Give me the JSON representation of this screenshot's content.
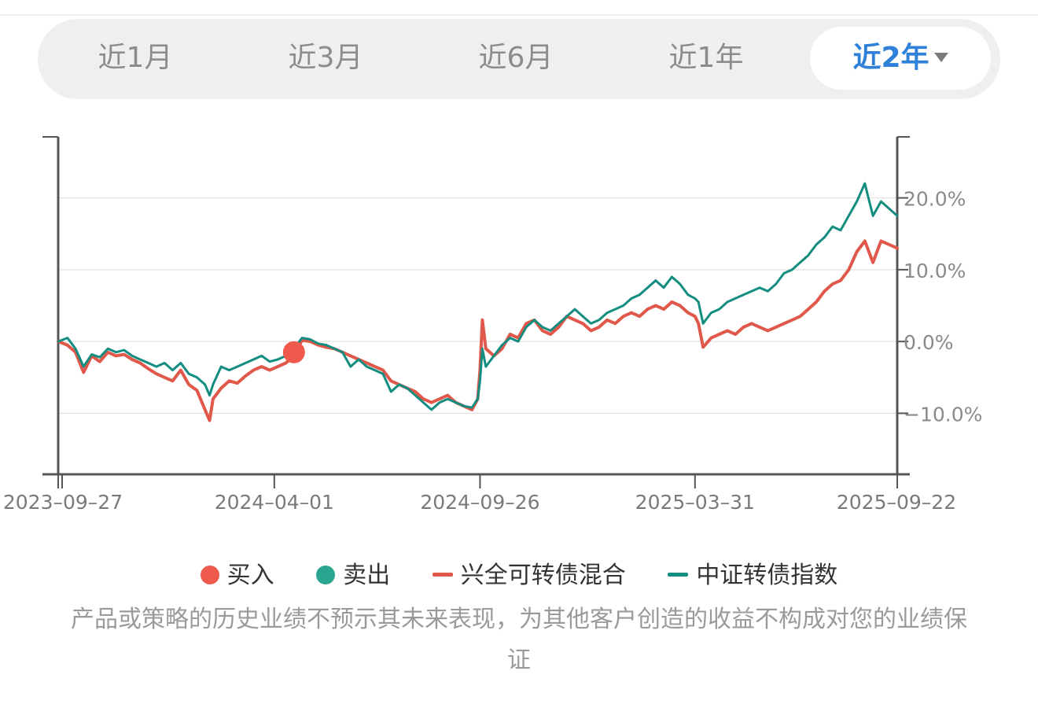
{
  "tabs": [
    {
      "label": "近1月",
      "active": false
    },
    {
      "label": "近3月",
      "active": false
    },
    {
      "label": "近6月",
      "active": false
    },
    {
      "label": "近1年",
      "active": false
    },
    {
      "label": "近2年",
      "active": true
    }
  ],
  "colors": {
    "fund": "#e0584a",
    "index": "#138d80",
    "buy": "#ef5a4c",
    "sell": "#2aa58f",
    "active_tab": "#2f80d8"
  },
  "legend": {
    "buy": "买入",
    "sell": "卖出",
    "fund": "兴全可转债混合",
    "index": "中证转债指数"
  },
  "disclaimer": "产品或策略的历史业绩不预示其未来表现，为其他客户创造的收益不构成对您的业绩保证",
  "chart_data": {
    "type": "line",
    "x_start": "2023-09-27",
    "x_end": "2025-09-22",
    "x_ticks": [
      "2023-09-27",
      "2024-04-01",
      "2024-09-26",
      "2025-03-31",
      "2025-09-22"
    ],
    "y_ticks": [
      20,
      10,
      0,
      -10
    ],
    "y_tick_labels": [
      "20.0%",
      "10.0%",
      "0.0%",
      "−10.0%"
    ],
    "ylim": [
      -18.5,
      28.5
    ],
    "y_axis_side": "right",
    "grid": true,
    "series": [
      {
        "name": "兴全可转债混合",
        "color": "#e0584a",
        "points": [
          [
            "2023-09-27",
            0.0
          ],
          [
            "2023-10-05",
            -0.5
          ],
          [
            "2023-10-12",
            -1.5
          ],
          [
            "2023-10-19",
            -4.3
          ],
          [
            "2023-10-26",
            -2.0
          ],
          [
            "2023-11-02",
            -2.8
          ],
          [
            "2023-11-09",
            -1.5
          ],
          [
            "2023-11-16",
            -2.0
          ],
          [
            "2023-11-23",
            -1.8
          ],
          [
            "2023-11-30",
            -2.5
          ],
          [
            "2023-12-07",
            -3.0
          ],
          [
            "2023-12-14",
            -3.8
          ],
          [
            "2023-12-21",
            -4.5
          ],
          [
            "2023-12-28",
            -5.0
          ],
          [
            "2024-01-04",
            -5.5
          ],
          [
            "2024-01-11",
            -4.0
          ],
          [
            "2024-01-18",
            -6.0
          ],
          [
            "2024-01-25",
            -6.8
          ],
          [
            "2024-02-01",
            -9.5
          ],
          [
            "2024-02-05",
            -11.0
          ],
          [
            "2024-02-08",
            -8.0
          ],
          [
            "2024-02-15",
            -6.5
          ],
          [
            "2024-02-22",
            -5.5
          ],
          [
            "2024-02-29",
            -5.8
          ],
          [
            "2024-03-07",
            -4.8
          ],
          [
            "2024-03-14",
            -4.0
          ],
          [
            "2024-03-21",
            -3.5
          ],
          [
            "2024-03-28",
            -4.0
          ],
          [
            "2024-04-04",
            -3.5
          ],
          [
            "2024-04-11",
            -3.0
          ],
          [
            "2024-04-18",
            -2.0
          ],
          [
            "2024-04-25",
            0.2
          ],
          [
            "2024-05-02",
            0.0
          ],
          [
            "2024-05-09",
            -0.5
          ],
          [
            "2024-05-16",
            -0.8
          ],
          [
            "2024-05-23",
            -1.0
          ],
          [
            "2024-05-30",
            -1.5
          ],
          [
            "2024-06-06",
            -2.0
          ],
          [
            "2024-06-13",
            -2.5
          ],
          [
            "2024-06-20",
            -3.0
          ],
          [
            "2024-06-27",
            -3.5
          ],
          [
            "2024-07-04",
            -4.0
          ],
          [
            "2024-07-11",
            -5.5
          ],
          [
            "2024-07-18",
            -6.0
          ],
          [
            "2024-07-25",
            -6.5
          ],
          [
            "2024-08-01",
            -7.0
          ],
          [
            "2024-08-08",
            -8.0
          ],
          [
            "2024-08-15",
            -8.5
          ],
          [
            "2024-08-22",
            -8.0
          ],
          [
            "2024-08-29",
            -7.5
          ],
          [
            "2024-09-05",
            -8.5
          ],
          [
            "2024-09-12",
            -9.0
          ],
          [
            "2024-09-19",
            -9.5
          ],
          [
            "2024-09-24",
            -8.0
          ],
          [
            "2024-09-26",
            -4.0
          ],
          [
            "2024-09-28",
            3.0
          ],
          [
            "2024-10-01",
            -1.0
          ],
          [
            "2024-10-08",
            -2.0
          ],
          [
            "2024-10-15",
            -1.0
          ],
          [
            "2024-10-22",
            1.0
          ],
          [
            "2024-10-29",
            0.5
          ],
          [
            "2024-11-05",
            2.5
          ],
          [
            "2024-11-12",
            3.0
          ],
          [
            "2024-11-19",
            1.5
          ],
          [
            "2024-11-26",
            1.0
          ],
          [
            "2024-12-03",
            2.0
          ],
          [
            "2024-12-10",
            3.5
          ],
          [
            "2024-12-17",
            3.0
          ],
          [
            "2024-12-24",
            2.5
          ],
          [
            "2024-12-31",
            1.5
          ],
          [
            "2025-01-07",
            2.0
          ],
          [
            "2025-01-14",
            3.0
          ],
          [
            "2025-01-21",
            2.5
          ],
          [
            "2025-01-28",
            3.5
          ],
          [
            "2025-02-04",
            4.0
          ],
          [
            "2025-02-11",
            3.5
          ],
          [
            "2025-02-18",
            4.5
          ],
          [
            "2025-02-25",
            5.0
          ],
          [
            "2025-03-04",
            4.5
          ],
          [
            "2025-03-11",
            5.5
          ],
          [
            "2025-03-18",
            5.0
          ],
          [
            "2025-03-25",
            4.0
          ],
          [
            "2025-03-31",
            3.5
          ],
          [
            "2025-04-03",
            2.5
          ],
          [
            "2025-04-07",
            -0.8
          ],
          [
            "2025-04-14",
            0.5
          ],
          [
            "2025-04-21",
            1.0
          ],
          [
            "2025-04-28",
            1.5
          ],
          [
            "2025-05-05",
            1.0
          ],
          [
            "2025-05-12",
            2.0
          ],
          [
            "2025-05-19",
            2.5
          ],
          [
            "2025-05-26",
            2.0
          ],
          [
            "2025-06-02",
            1.5
          ],
          [
            "2025-06-09",
            2.0
          ],
          [
            "2025-06-16",
            2.5
          ],
          [
            "2025-06-23",
            3.0
          ],
          [
            "2025-06-30",
            3.5
          ],
          [
            "2025-07-07",
            4.5
          ],
          [
            "2025-07-14",
            5.5
          ],
          [
            "2025-07-21",
            7.0
          ],
          [
            "2025-07-28",
            8.0
          ],
          [
            "2025-08-04",
            8.5
          ],
          [
            "2025-08-11",
            10.0
          ],
          [
            "2025-08-18",
            12.5
          ],
          [
            "2025-08-25",
            14.0
          ],
          [
            "2025-09-01",
            11.0
          ],
          [
            "2025-09-08",
            14.0
          ],
          [
            "2025-09-15",
            13.5
          ],
          [
            "2025-09-22",
            13.0
          ]
        ]
      },
      {
        "name": "中证转债指数",
        "color": "#138d80",
        "points": [
          [
            "2023-09-27",
            0.0
          ],
          [
            "2023-10-05",
            0.5
          ],
          [
            "2023-10-12",
            -1.0
          ],
          [
            "2023-10-19",
            -3.5
          ],
          [
            "2023-10-26",
            -1.8
          ],
          [
            "2023-11-02",
            -2.2
          ],
          [
            "2023-11-09",
            -1.0
          ],
          [
            "2023-11-16",
            -1.5
          ],
          [
            "2023-11-23",
            -1.2
          ],
          [
            "2023-11-30",
            -2.0
          ],
          [
            "2023-12-07",
            -2.5
          ],
          [
            "2023-12-14",
            -3.0
          ],
          [
            "2023-12-21",
            -3.5
          ],
          [
            "2023-12-28",
            -3.0
          ],
          [
            "2024-01-04",
            -4.0
          ],
          [
            "2024-01-11",
            -3.0
          ],
          [
            "2024-01-18",
            -4.5
          ],
          [
            "2024-01-25",
            -5.0
          ],
          [
            "2024-02-01",
            -6.0
          ],
          [
            "2024-02-05",
            -7.5
          ],
          [
            "2024-02-08",
            -6.0
          ],
          [
            "2024-02-15",
            -3.5
          ],
          [
            "2024-02-22",
            -4.0
          ],
          [
            "2024-02-29",
            -3.5
          ],
          [
            "2024-03-07",
            -3.0
          ],
          [
            "2024-03-14",
            -2.5
          ],
          [
            "2024-03-21",
            -2.0
          ],
          [
            "2024-03-28",
            -2.8
          ],
          [
            "2024-04-04",
            -2.5
          ],
          [
            "2024-04-11",
            -2.0
          ],
          [
            "2024-04-18",
            -1.0
          ],
          [
            "2024-04-25",
            0.5
          ],
          [
            "2024-05-02",
            0.3
          ],
          [
            "2024-05-09",
            -0.3
          ],
          [
            "2024-05-16",
            -0.5
          ],
          [
            "2024-05-23",
            -1.0
          ],
          [
            "2024-05-30",
            -1.5
          ],
          [
            "2024-06-06",
            -3.5
          ],
          [
            "2024-06-13",
            -2.5
          ],
          [
            "2024-06-20",
            -3.5
          ],
          [
            "2024-06-27",
            -4.0
          ],
          [
            "2024-07-04",
            -4.5
          ],
          [
            "2024-07-11",
            -7.0
          ],
          [
            "2024-07-18",
            -6.0
          ],
          [
            "2024-07-25",
            -6.5
          ],
          [
            "2024-08-01",
            -7.5
          ],
          [
            "2024-08-08",
            -8.5
          ],
          [
            "2024-08-15",
            -9.5
          ],
          [
            "2024-08-22",
            -8.5
          ],
          [
            "2024-08-29",
            -8.0
          ],
          [
            "2024-09-05",
            -8.5
          ],
          [
            "2024-09-12",
            -9.0
          ],
          [
            "2024-09-19",
            -9.2
          ],
          [
            "2024-09-24",
            -8.0
          ],
          [
            "2024-09-26",
            -5.5
          ],
          [
            "2024-09-28",
            -1.0
          ],
          [
            "2024-10-01",
            -3.5
          ],
          [
            "2024-10-08",
            -2.0
          ],
          [
            "2024-10-15",
            -0.5
          ],
          [
            "2024-10-22",
            0.5
          ],
          [
            "2024-10-29",
            0.0
          ],
          [
            "2024-11-05",
            2.0
          ],
          [
            "2024-11-12",
            3.0
          ],
          [
            "2024-11-19",
            2.0
          ],
          [
            "2024-11-26",
            1.5
          ],
          [
            "2024-12-03",
            2.5
          ],
          [
            "2024-12-10",
            3.5
          ],
          [
            "2024-12-17",
            4.5
          ],
          [
            "2024-12-24",
            3.5
          ],
          [
            "2024-12-31",
            2.5
          ],
          [
            "2025-01-07",
            3.0
          ],
          [
            "2025-01-14",
            4.0
          ],
          [
            "2025-01-21",
            4.5
          ],
          [
            "2025-01-28",
            5.0
          ],
          [
            "2025-02-04",
            6.0
          ],
          [
            "2025-02-11",
            6.5
          ],
          [
            "2025-02-18",
            7.5
          ],
          [
            "2025-02-25",
            8.5
          ],
          [
            "2025-03-04",
            7.5
          ],
          [
            "2025-03-11",
            9.0
          ],
          [
            "2025-03-18",
            8.0
          ],
          [
            "2025-03-25",
            6.5
          ],
          [
            "2025-03-31",
            6.0
          ],
          [
            "2025-04-03",
            5.5
          ],
          [
            "2025-04-07",
            2.5
          ],
          [
            "2025-04-14",
            4.0
          ],
          [
            "2025-04-21",
            4.5
          ],
          [
            "2025-04-28",
            5.5
          ],
          [
            "2025-05-05",
            6.0
          ],
          [
            "2025-05-12",
            6.5
          ],
          [
            "2025-05-19",
            7.0
          ],
          [
            "2025-05-26",
            7.5
          ],
          [
            "2025-06-02",
            7.0
          ],
          [
            "2025-06-09",
            8.0
          ],
          [
            "2025-06-16",
            9.5
          ],
          [
            "2025-06-23",
            10.0
          ],
          [
            "2025-06-30",
            11.0
          ],
          [
            "2025-07-07",
            12.0
          ],
          [
            "2025-07-14",
            13.5
          ],
          [
            "2025-07-21",
            14.5
          ],
          [
            "2025-07-28",
            16.0
          ],
          [
            "2025-08-04",
            15.5
          ],
          [
            "2025-08-11",
            17.5
          ],
          [
            "2025-08-18",
            19.5
          ],
          [
            "2025-08-25",
            22.0
          ],
          [
            "2025-09-01",
            17.5
          ],
          [
            "2025-09-08",
            19.5
          ],
          [
            "2025-09-15",
            18.5
          ],
          [
            "2025-09-22",
            17.5
          ]
        ]
      }
    ],
    "markers": [
      {
        "type": "buy",
        "label": "买入",
        "date": "2024-04-18",
        "value": -1.5
      }
    ]
  }
}
